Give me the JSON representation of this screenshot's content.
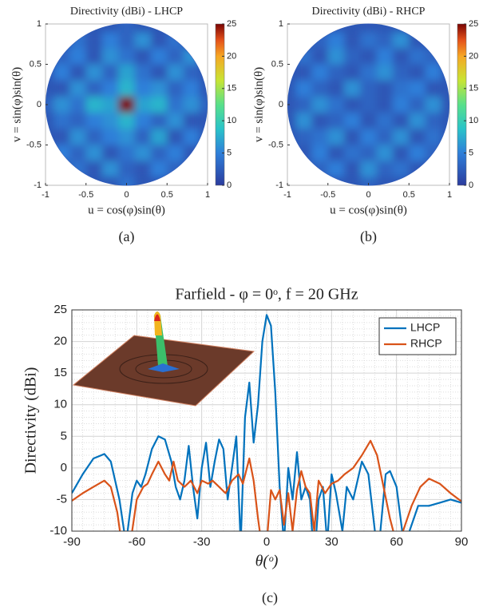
{
  "chart_data": [
    {
      "type": "heatmap",
      "title": "Directivity (dBi) - LHCP",
      "xlabel": "u = cos(φ)sin(θ)",
      "ylabel": "v = sin(φ)sin(θ)",
      "caption": "(a)",
      "x": [
        -1,
        -0.8,
        -0.6,
        -0.4,
        -0.2,
        0,
        0.2,
        0.4,
        0.6,
        0.8,
        1
      ],
      "y": [
        1,
        0.8,
        0.6,
        0.4,
        0.2,
        0,
        -0.2,
        -0.4,
        -0.6,
        -0.8,
        -1
      ],
      "z": [
        [
          null,
          null,
          null,
          null,
          null,
          3,
          null,
          null,
          null,
          null,
          null
        ],
        [
          null,
          null,
          4,
          2,
          5,
          3,
          6,
          2,
          4,
          null,
          null
        ],
        [
          null,
          3,
          5,
          2,
          6,
          4,
          2,
          5,
          3,
          6,
          null
        ],
        [
          null,
          5,
          2,
          6,
          3,
          7,
          4,
          2,
          6,
          3,
          null
        ],
        [
          null,
          2,
          6,
          3,
          5,
          8,
          5,
          6,
          3,
          5,
          null
        ],
        [
          3,
          6,
          4,
          8,
          7,
          25,
          7,
          8,
          4,
          6,
          3
        ],
        [
          null,
          4,
          3,
          5,
          6,
          8,
          5,
          3,
          6,
          2,
          null
        ],
        [
          null,
          2,
          6,
          3,
          5,
          6,
          3,
          7,
          2,
          5,
          null
        ],
        [
          null,
          5,
          3,
          6,
          2,
          4,
          6,
          3,
          5,
          2,
          null
        ],
        [
          null,
          null,
          4,
          2,
          6,
          3,
          2,
          5,
          3,
          null,
          null
        ],
        [
          null,
          null,
          null,
          null,
          null,
          4,
          null,
          null,
          null,
          null,
          null
        ]
      ],
      "xlim": [
        -1,
        1
      ],
      "ylim": [
        -1,
        1
      ],
      "xticks": [
        -1,
        -0.5,
        0,
        0.5,
        1
      ],
      "yticks": [
        -1,
        -0.5,
        0,
        0.5,
        1
      ],
      "clim": [
        0,
        25
      ],
      "cticks": [
        0,
        5,
        10,
        15,
        20,
        25
      ],
      "colormap": "turbo"
    },
    {
      "type": "heatmap",
      "title": "Directivity (dBi) - RHCP",
      "xlabel": "u = cos(φ)sin(θ)",
      "ylabel": "v = sin(φ)sin(θ)",
      "caption": "(b)",
      "x": [
        -1,
        -0.8,
        -0.6,
        -0.4,
        -0.2,
        0,
        0.2,
        0.4,
        0.6,
        0.8,
        1
      ],
      "y": [
        1,
        0.8,
        0.6,
        0.4,
        0.2,
        0,
        -0.2,
        -0.4,
        -0.6,
        -0.8,
        -1
      ],
      "z": [
        [
          null,
          null,
          null,
          null,
          null,
          2,
          null,
          null,
          null,
          null,
          null
        ],
        [
          null,
          null,
          3,
          5,
          2,
          4,
          3,
          6,
          2,
          null,
          null
        ],
        [
          null,
          4,
          2,
          6,
          3,
          2,
          5,
          2,
          4,
          3,
          null
        ],
        [
          null,
          2,
          5,
          3,
          2,
          4,
          6,
          3,
          2,
          5,
          null
        ],
        [
          null,
          5,
          3,
          2,
          6,
          3,
          2,
          4,
          5,
          2,
          null
        ],
        [
          2,
          3,
          6,
          4,
          2,
          3,
          2,
          5,
          3,
          6,
          2
        ],
        [
          null,
          6,
          2,
          3,
          5,
          2,
          4,
          2,
          6,
          3,
          null
        ],
        [
          null,
          3,
          4,
          6,
          2,
          5,
          3,
          6,
          2,
          4,
          null
        ],
        [
          null,
          2,
          5,
          2,
          4,
          3,
          6,
          2,
          5,
          3,
          null
        ],
        [
          null,
          null,
          3,
          5,
          2,
          6,
          3,
          4,
          2,
          null,
          null
        ],
        [
          null,
          null,
          null,
          null,
          null,
          3,
          null,
          null,
          null,
          null,
          null
        ]
      ],
      "xlim": [
        -1,
        1
      ],
      "ylim": [
        -1,
        1
      ],
      "xticks": [
        -1,
        -0.5,
        0,
        0.5,
        1
      ],
      "yticks": [
        -1,
        -0.5,
        0,
        0.5,
        1
      ],
      "clim": [
        0,
        25
      ],
      "cticks": [
        0,
        5,
        10,
        15,
        20,
        25
      ],
      "colormap": "turbo"
    },
    {
      "type": "line",
      "title": "Farfield - φ = 0ᵒ, f = 20 GHz",
      "xlabel": "θ(ᵒ)",
      "ylabel": "Directivity (dBi)",
      "caption": "(c)",
      "xlim": [
        -90,
        90
      ],
      "ylim": [
        -10,
        25
      ],
      "xticks": [
        -90,
        -60,
        -30,
        0,
        30,
        60,
        90
      ],
      "yticks": [
        -10,
        -5,
        0,
        5,
        10,
        15,
        20,
        25
      ],
      "grid": true,
      "minor_grid": true,
      "legend": "upper right",
      "series": [
        {
          "name": "LHCP",
          "color": "#0072bd",
          "x": [
            -90,
            -85,
            -80,
            -75,
            -72,
            -68,
            -65,
            -62,
            -60,
            -58,
            -56,
            -53,
            -50,
            -47,
            -44,
            -42,
            -40,
            -38,
            -36,
            -34,
            -32,
            -30,
            -28,
            -26,
            -24,
            -22,
            -20,
            -18,
            -16,
            -14,
            -12,
            -10,
            -8,
            -6,
            -4,
            -2,
            0,
            2,
            4,
            6,
            8,
            10,
            12,
            14,
            16,
            18,
            20,
            22,
            24,
            26,
            28,
            30,
            32,
            35,
            37,
            40,
            44,
            47,
            50,
            52,
            55,
            57,
            60,
            63,
            66,
            70,
            75,
            80,
            85,
            90
          ],
          "values": [
            -4,
            -1,
            1.5,
            2.2,
            1,
            -5,
            -12,
            -4,
            -2,
            -3,
            -1,
            3,
            5,
            4.5,
            1,
            -3,
            -5,
            -2,
            3.5,
            -3,
            -8,
            0,
            4,
            -3,
            1,
            4.5,
            3,
            -5,
            0,
            5,
            -12,
            8,
            13.5,
            4,
            10,
            20,
            24.2,
            22.5,
            12,
            -3,
            -12,
            0,
            -5,
            2.5,
            -5,
            -3,
            -5,
            -15,
            -5,
            -3,
            -12,
            -1,
            -4,
            -10,
            -3,
            -5,
            1,
            -1,
            -10,
            -12,
            -1,
            -0.5,
            -3,
            -11,
            -10,
            -6,
            -6,
            -5.5,
            -5,
            -5.5
          ]
        },
        {
          "name": "RHCP",
          "color": "#d95319",
          "x": [
            -90,
            -85,
            -80,
            -75,
            -72,
            -69,
            -67,
            -63,
            -60,
            -57,
            -55,
            -53,
            -50,
            -47,
            -45,
            -43,
            -41,
            -38,
            -35,
            -32,
            -30,
            -27,
            -25,
            -22,
            -19,
            -16,
            -13,
            -11,
            -8,
            -6,
            -4,
            -2,
            0,
            2,
            4,
            6,
            8,
            10,
            12,
            14,
            16,
            18,
            20,
            22,
            24,
            27,
            30,
            33,
            36,
            40,
            44,
            48,
            51,
            54,
            57,
            60,
            63,
            67,
            71,
            75,
            80,
            85,
            90
          ],
          "values": [
            -5.2,
            -4,
            -3,
            -2,
            -3,
            -7,
            -12,
            -12,
            -5,
            -3,
            -2.5,
            -1,
            1,
            -1,
            -2,
            1,
            -2,
            -3,
            -2,
            -4,
            -2,
            -2.5,
            -2,
            -3,
            -4,
            -2,
            -1,
            -2.5,
            1.5,
            -2,
            -8,
            -13,
            -12,
            -3.5,
            -5,
            -3.5,
            -9,
            -4,
            -10,
            -3.5,
            -0.5,
            -3,
            -4,
            -10,
            -2,
            -4,
            -2.5,
            -2,
            -1,
            0,
            2,
            4.3,
            2,
            -3,
            -8,
            -12,
            -10,
            -6,
            -3,
            -1.7,
            -2.5,
            -4,
            -5.3
          ]
        }
      ]
    }
  ]
}
